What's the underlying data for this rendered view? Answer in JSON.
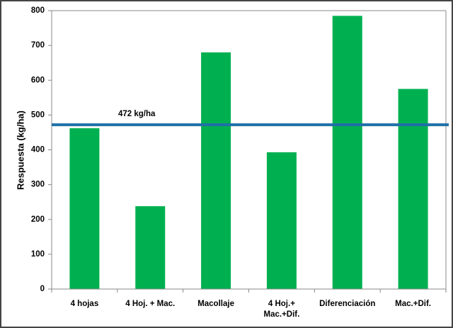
{
  "chart_data": {
    "type": "bar",
    "y_label": "Respuesta (kg/ha)",
    "categories": [
      "4 hojas",
      "4 Hoj. + Mac.",
      "Macollaje",
      "4 Hoj.+\nMac.+Dif.",
      "Diferenciación",
      "Mac.+Dif."
    ],
    "values": [
      462,
      238,
      680,
      393,
      785,
      575
    ],
    "color": "#00b050",
    "ylim": [
      0,
      800
    ],
    "yticks": [
      0,
      100,
      200,
      300,
      400,
      500,
      600,
      700,
      800
    ],
    "grid": false,
    "reference_line": {
      "value": 472,
      "label": "472 kg/ha",
      "color": "#1f70a8"
    }
  }
}
